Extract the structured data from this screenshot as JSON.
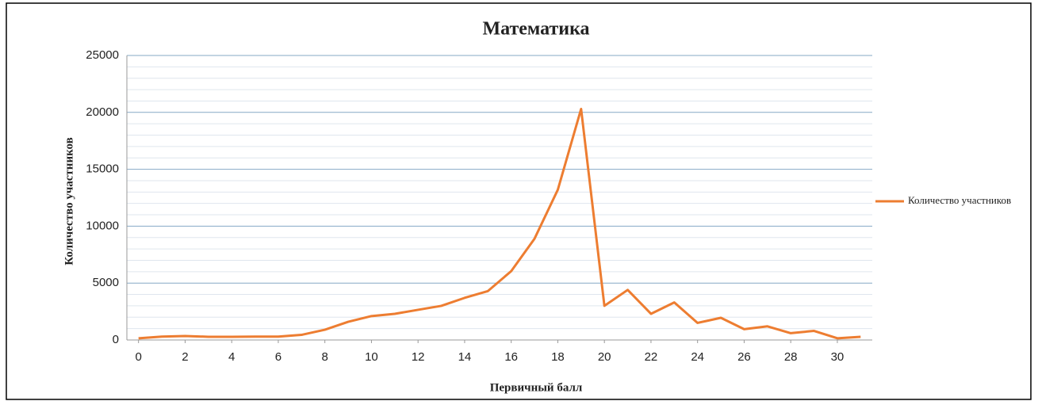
{
  "chart_data": {
    "type": "line",
    "title": "Математика",
    "xlabel": "Первичный балл",
    "ylabel": "Количество участников",
    "x": [
      0,
      1,
      2,
      3,
      4,
      5,
      6,
      7,
      8,
      9,
      10,
      11,
      12,
      13,
      14,
      15,
      16,
      17,
      18,
      19,
      20,
      21,
      22,
      23,
      24,
      25,
      26,
      27,
      28,
      29,
      30,
      31
    ],
    "series": [
      {
        "name": "Количество участников",
        "color": "#ed7d31",
        "values": [
          150,
          300,
          350,
          280,
          280,
          300,
          300,
          450,
          900,
          1600,
          2100,
          2300,
          2650,
          3000,
          3700,
          4300,
          6050,
          8900,
          13200,
          20300,
          3000,
          4400,
          2300,
          3300,
          1500,
          1950,
          950,
          1200,
          600,
          800,
          150,
          280
        ]
      }
    ],
    "xlim": [
      -0.5,
      31.5
    ],
    "xticks": [
      0,
      2,
      4,
      6,
      8,
      10,
      12,
      14,
      16,
      18,
      20,
      22,
      24,
      26,
      28,
      30
    ],
    "ylim": [
      0,
      25000
    ],
    "yticks": [
      0,
      5000,
      10000,
      15000,
      20000,
      25000
    ],
    "yminorticks": [
      1000,
      2000,
      3000,
      4000,
      6000,
      7000,
      8000,
      9000,
      11000,
      12000,
      13000,
      14000,
      16000,
      17000,
      18000,
      19000,
      21000,
      22000,
      23000,
      24000
    ],
    "grid": true,
    "legend": "right"
  }
}
